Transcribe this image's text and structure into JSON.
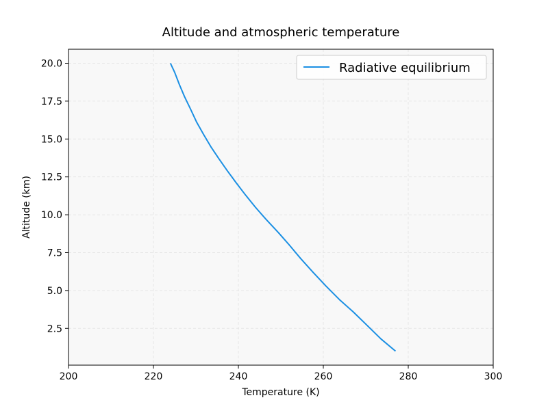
{
  "chart_data": {
    "type": "line",
    "title": "Altitude and atmospheric temperature",
    "xlabel": "Temperature (K)",
    "ylabel": "Altitude (km)",
    "xlim": [
      200,
      300
    ],
    "ylim": [
      0.075,
      20.925
    ],
    "xticks": [
      200,
      220,
      240,
      260,
      280,
      300
    ],
    "xtick_labels": [
      "200",
      "220",
      "240",
      "260",
      "280",
      "300"
    ],
    "yticks": [
      2.5,
      5.0,
      7.5,
      10.0,
      12.5,
      15.0,
      17.5,
      20.0
    ],
    "ytick_labels": [
      "2.5",
      "5.0",
      "7.5",
      "10.0",
      "12.5",
      "15.0",
      "17.5",
      "20.0"
    ],
    "grid": true,
    "legend_position": "top-right",
    "colors": {
      "line": "#1a8fe3",
      "plot_background": "#f8f8f8",
      "grid": "#e6e6e6"
    },
    "series": [
      {
        "name": "Radiative equilibrium",
        "points": [
          [
            277.0,
            1.0
          ],
          [
            273.6,
            1.8
          ],
          [
            270.3,
            2.7
          ],
          [
            267.0,
            3.6
          ],
          [
            263.8,
            4.4
          ],
          [
            260.6,
            5.3
          ],
          [
            257.6,
            6.2
          ],
          [
            254.7,
            7.1
          ],
          [
            252.0,
            8.0
          ],
          [
            249.5,
            8.8
          ],
          [
            246.5,
            9.7
          ],
          [
            244.0,
            10.5
          ],
          [
            241.7,
            11.3
          ],
          [
            239.5,
            12.1
          ],
          [
            237.4,
            12.9
          ],
          [
            235.4,
            13.7
          ],
          [
            233.5,
            14.5
          ],
          [
            231.8,
            15.3
          ],
          [
            230.2,
            16.1
          ],
          [
            228.7,
            17.0
          ],
          [
            227.3,
            17.8
          ],
          [
            226.1,
            18.6
          ],
          [
            225.0,
            19.4
          ],
          [
            224.0,
            20.0
          ]
        ]
      }
    ]
  }
}
